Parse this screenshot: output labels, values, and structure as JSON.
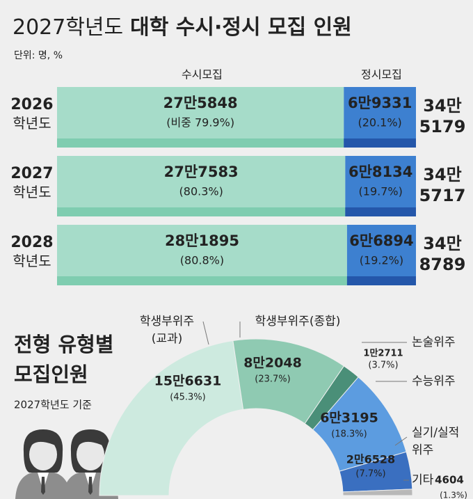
{
  "chart_data": [
    {
      "type": "bar",
      "title_light": "2027학년도",
      "title_bold": "대학 수시·정시 모집 인원",
      "unit": "단위: 명, %",
      "categories": [
        "2026 학년도",
        "2027 학년도",
        "2028 학년도"
      ],
      "series": [
        {
          "name": "수시모집",
          "color": "#a6dcc9",
          "stripe_color": "#7fcdb0",
          "label_color": "#2f7d5c",
          "values": [
            79.9,
            80.3,
            80.8
          ],
          "value_labels": [
            "(비중 79.9%)",
            "(80.3%)",
            "(80.8%)"
          ],
          "counts": [
            275848,
            277583,
            281895
          ],
          "count_labels": [
            "27만5848",
            "27만7583",
            "28만1895"
          ]
        },
        {
          "name": "정시모집",
          "color": "#3d80d0",
          "stripe_color": "#2457aa",
          "label_color": "#ffffff",
          "values": [
            20.1,
            19.7,
            19.2
          ],
          "value_labels": [
            "(20.1%)",
            "(19.7%)",
            "(19.2%)"
          ],
          "counts": [
            69331,
            68134,
            66894
          ],
          "count_labels": [
            "6만9331",
            "6만8134",
            "6만6894"
          ]
        }
      ],
      "totals": [
        345179,
        345717,
        348789
      ],
      "total_labels": [
        "34만 5179",
        "34만 5717",
        "34만 8789"
      ]
    },
    {
      "type": "pie",
      "title": "전형 유형별 모집인원",
      "subtitle": "2027학년도 기준",
      "categories": [
        "학생부위주(교과)",
        "학생부위주(종합)",
        "논술위주",
        "수능위주",
        "실기/실적위주",
        "기타"
      ],
      "values": [
        45.3,
        23.7,
        3.7,
        18.3,
        7.7,
        1.3
      ],
      "value_labels": [
        "(45.3%)",
        "(23.7%)",
        "(3.7%)",
        "(18.3%)",
        "(7.7%)",
        "(1.3%)"
      ],
      "counts": [
        156631,
        82048,
        12711,
        63195,
        26528,
        4604
      ],
      "count_labels": [
        "15만6631",
        "8만2048",
        "1만2711",
        "6만3195",
        "2만6528",
        "4604"
      ],
      "colors": [
        "#cdeadf",
        "#8fcab2",
        "#4a8f78",
        "#5c9ce0",
        "#3a6fc0",
        "#b8b8b8"
      ]
    }
  ]
}
